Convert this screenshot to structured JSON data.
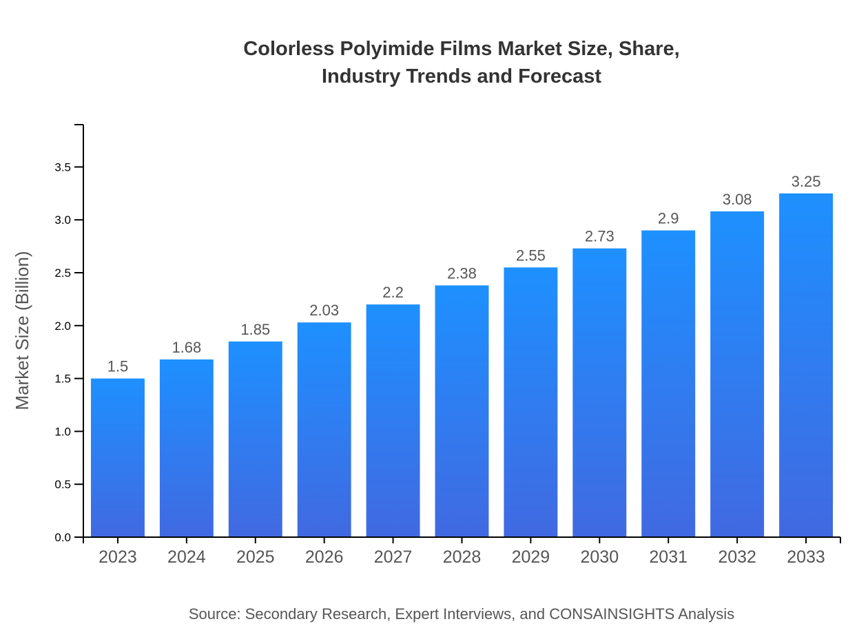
{
  "chart_data": {
    "type": "bar",
    "title_lines": [
      "Colorless Polyimide Films Market Size, Share,",
      "Industry Trends and Forecast"
    ],
    "xlabel": "",
    "ylabel": "Market Size (Billion)",
    "categories": [
      "2023",
      "2024",
      "2025",
      "2026",
      "2027",
      "2028",
      "2029",
      "2030",
      "2031",
      "2032",
      "2033"
    ],
    "values": [
      1.5,
      1.68,
      1.85,
      2.03,
      2.2,
      2.38,
      2.55,
      2.73,
      2.9,
      3.08,
      3.25
    ],
    "data_labels": [
      "1.5",
      "1.68",
      "1.85",
      "2.03",
      "2.2",
      "2.38",
      "2.55",
      "2.73",
      "2.9",
      "3.08",
      "3.25"
    ],
    "ylim": [
      0,
      3.9
    ],
    "yticks": [
      0.0,
      0.5,
      1.0,
      1.5,
      2.0,
      2.5,
      3.0,
      3.5
    ],
    "ytick_labels": [
      "0.0",
      "0.5",
      "1.0",
      "1.5",
      "2.0",
      "2.5",
      "3.0",
      "3.5"
    ],
    "grid": false,
    "colors": {
      "bar_top": "#1E90FF",
      "bar_bottom": "#4169E1",
      "text": "#333333",
      "label": "#555555"
    },
    "source": "Source: Secondary Research, Expert Interviews, and CONSAINSIGHTS Analysis"
  }
}
